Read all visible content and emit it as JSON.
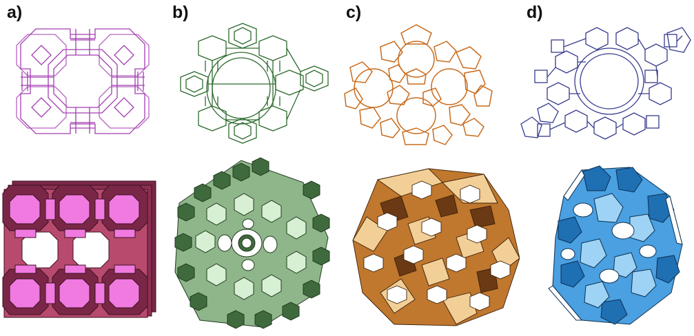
{
  "figure": {
    "panels": [
      {
        "id": "a",
        "label": "a)",
        "wire_color": "#a23cb0",
        "light_color": "#f07ae0",
        "dark_color": "#7a2747",
        "mid_color": "#b84a6e"
      },
      {
        "id": "b",
        "label": "b)",
        "wire_color": "#2d6b2d",
        "light_color": "#d7efd2",
        "dark_color": "#3f6a3d",
        "mid_color": "#8fb58a"
      },
      {
        "id": "c",
        "label": "c)",
        "wire_color": "#c96a1c",
        "light_color": "#f2cf96",
        "dark_color": "#6b3a14",
        "mid_color": "#c0772e"
      },
      {
        "id": "d",
        "label": "d)",
        "wire_color": "#353a8c",
        "light_color": "#9fd3f5",
        "dark_color": "#1f6fb3",
        "mid_color": "#4aa0e0"
      }
    ]
  }
}
